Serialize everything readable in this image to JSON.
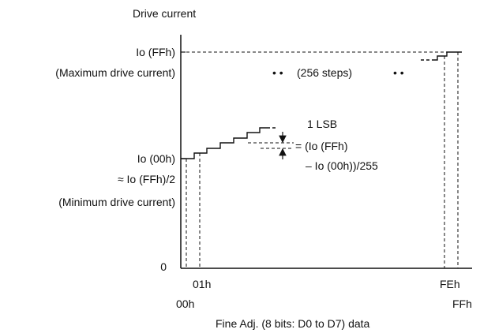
{
  "y_axis": {
    "title": "Drive current",
    "max_label_line1": "Io (FFh)",
    "max_label_line2": "(Maximum drive current)",
    "min_label_line1": "Io (00h)",
    "min_label_line2": "≈ Io (FFh)/2",
    "min_label_line3": "(Minimum drive current)",
    "zero_label": "0"
  },
  "x_axis": {
    "title": "Fine Adj. (8 bits: D0 to D7) data",
    "tick_01h": "01h",
    "tick_00h": "00h",
    "tick_FEh": "FEh",
    "tick_FFh": "FFh"
  },
  "annotations": {
    "steps_dots_left": "• •",
    "steps_text": "(256 steps)",
    "steps_dots_right": "• •",
    "lsb_line1": "1 LSB",
    "lsb_line2": "= (Io (FFh)",
    "lsb_line3": "– Io (00h))/255"
  },
  "colors": {
    "stroke": "#111111",
    "background": "#ffffff"
  }
}
